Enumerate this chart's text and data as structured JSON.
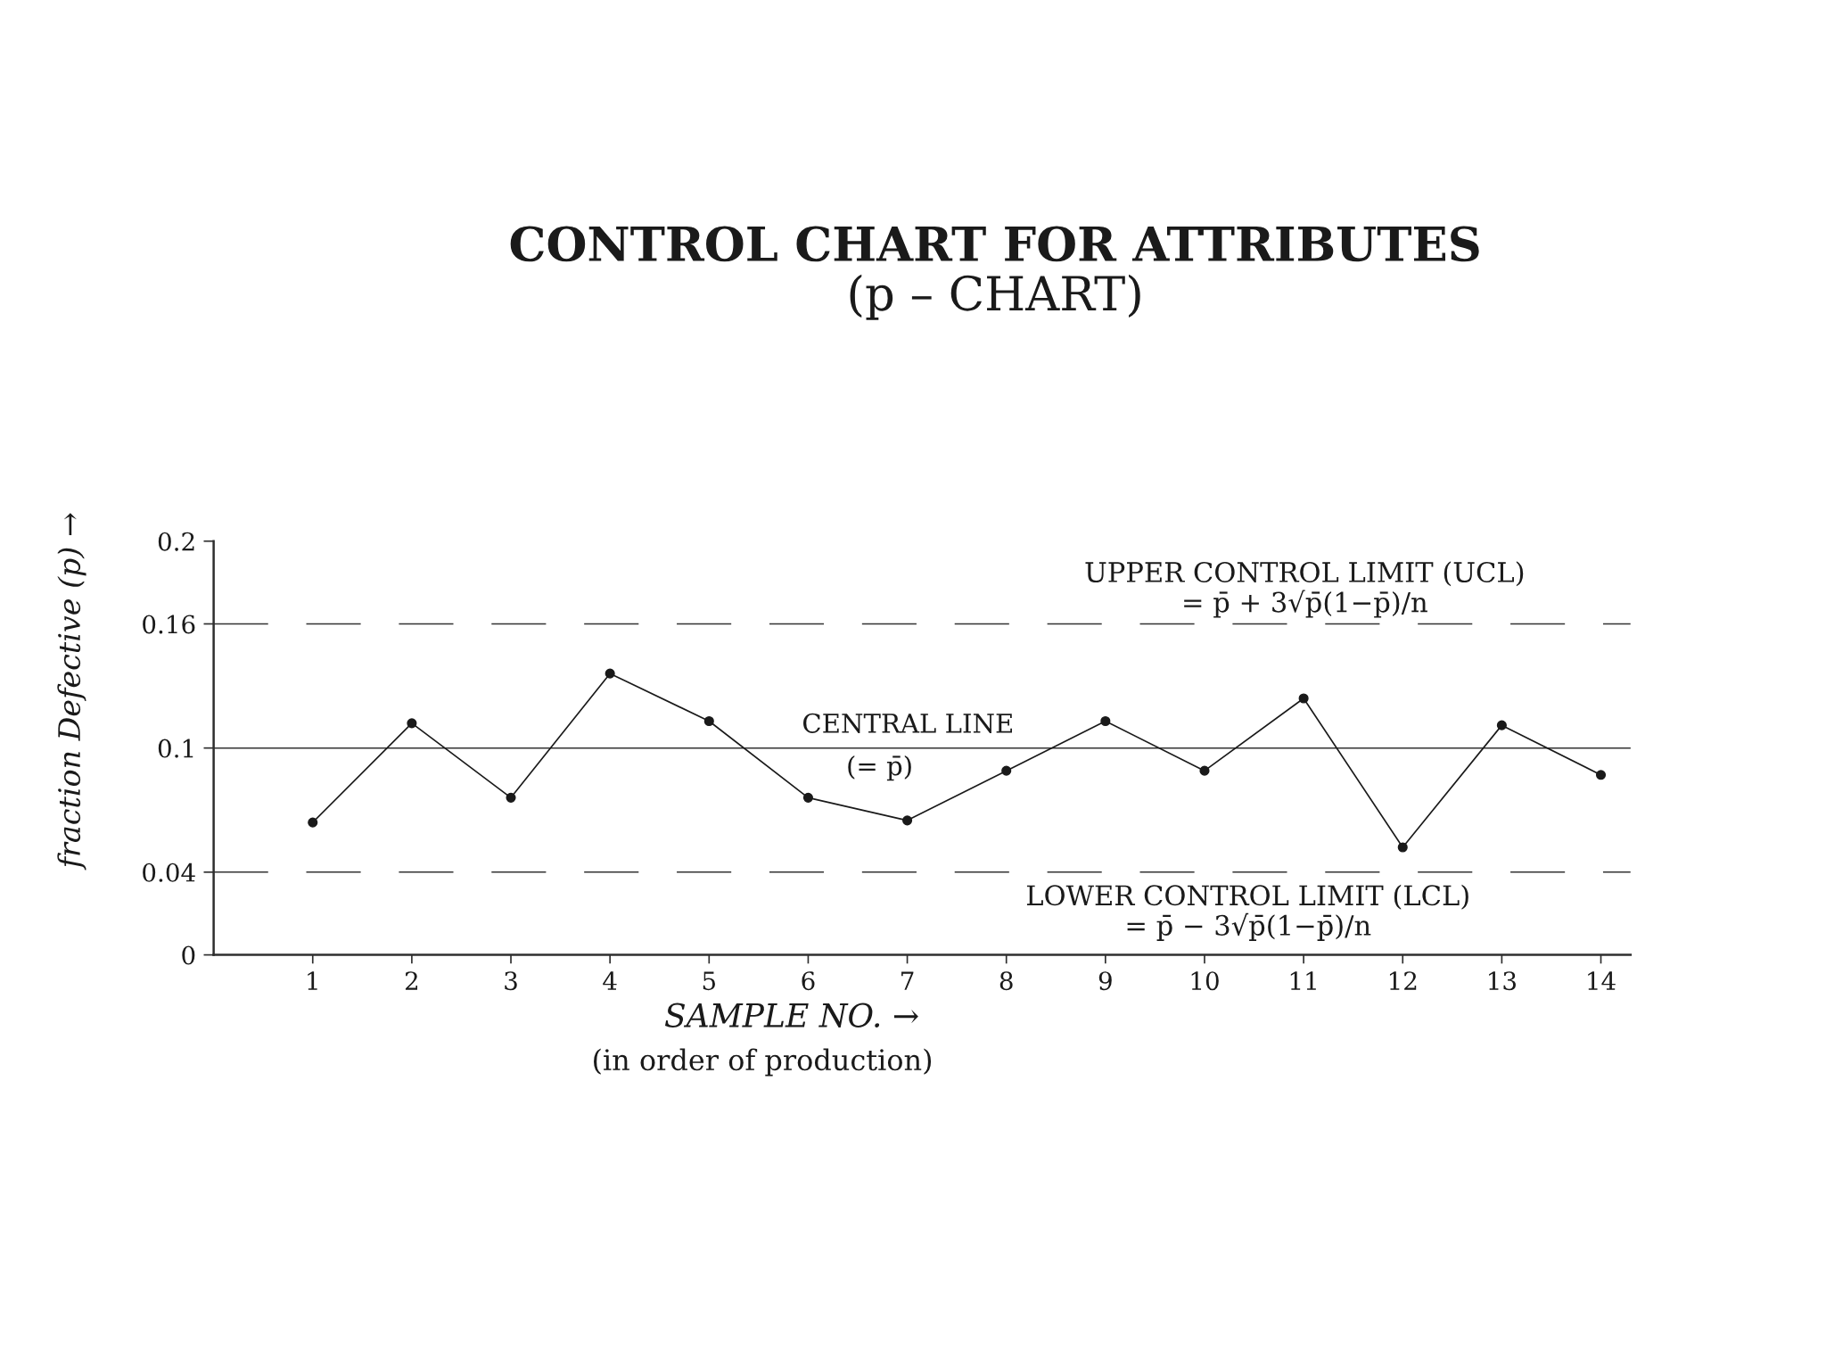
{
  "chart_data": {
    "type": "line",
    "title": "CONTROL CHART FOR ATTRIBUTES",
    "subtitle": "(p – CHART)",
    "xlabel": "SAMPLE NO. →",
    "ylabel": "fraction Defective (p) →",
    "annotations": [
      "(in order of production)"
    ],
    "x": [
      1,
      2,
      3,
      4,
      5,
      6,
      7,
      8,
      9,
      10,
      11,
      12,
      13,
      14
    ],
    "series": [
      {
        "color": "#1a1a1a",
        "values": [
          0.064,
          0.112,
          0.076,
          0.136,
          0.113,
          0.076,
          0.065,
          0.089,
          0.113,
          0.089,
          0.124,
          0.052,
          0.111,
          0.087
        ]
      }
    ],
    "xlim": [
      0,
      14.3
    ],
    "xticks": [
      1,
      2,
      3,
      4,
      5,
      6,
      7,
      8,
      9,
      10,
      11,
      12,
      13,
      14
    ],
    "ylim": [
      0,
      0.2
    ],
    "yticks": [
      0,
      0.04,
      0.1,
      0.16,
      0.2
    ],
    "ref_lines": [
      {
        "axis": "y",
        "value": 0.16,
        "label": "UPPER CONTROL LIMIT (UCL)\n= p̄ + 3√p̄(1−p̄)/n",
        "line_style": "dashed",
        "color": "#333333"
      },
      {
        "axis": "y",
        "value": 0.1,
        "label": "CENTRAL LINE\n(= p̄)",
        "line_style": "solid",
        "color": "#333333"
      },
      {
        "axis": "y",
        "value": 0.04,
        "label": "LOWER CONTROL LIMIT (LCL)\n= p̄ − 3√p̄(1−p̄)/n",
        "line_style": "dashed",
        "color": "#333333"
      }
    ],
    "marker": "circle",
    "line_style": "solid",
    "grid": false
  }
}
